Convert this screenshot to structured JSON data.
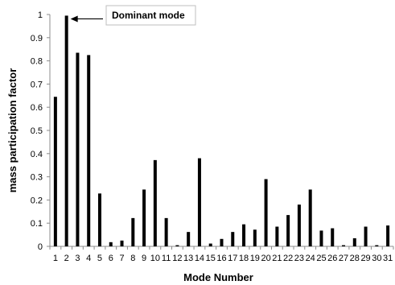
{
  "chart_data": {
    "type": "bar",
    "xlabel": "Mode Number",
    "ylabel": "mass participation factor",
    "ylim": [
      0,
      1
    ],
    "yticks": [
      "0",
      "0.1",
      "0.2",
      "0.3",
      "0.4",
      "0.5",
      "0.6",
      "0.7",
      "0.8",
      "0.9",
      "1"
    ],
    "categories": [
      "1",
      "2",
      "3",
      "4",
      "5",
      "6",
      "7",
      "8",
      "9",
      "10",
      "11",
      "12",
      "13",
      "14",
      "15",
      "16",
      "17",
      "18",
      "19",
      "20",
      "21",
      "22",
      "23",
      "24",
      "25",
      "26",
      "27",
      "28",
      "29",
      "30",
      "31"
    ],
    "values": [
      0.645,
      0.995,
      0.835,
      0.825,
      0.228,
      0.018,
      0.025,
      0.122,
      0.245,
      0.372,
      0.122,
      0.005,
      0.062,
      0.38,
      0.012,
      0.032,
      0.062,
      0.095,
      0.072,
      0.29,
      0.085,
      0.135,
      0.18,
      0.245,
      0.068,
      0.078,
      0.005,
      0.035,
      0.085,
      0.005,
      0.09
    ],
    "grid": false,
    "annotations": [
      {
        "text": "Dominant mode",
        "target_category": "2"
      }
    ],
    "colors": {
      "bar": "#000000",
      "axis": "#8c8c8c",
      "annotation_border": "#bfbfbf"
    }
  }
}
